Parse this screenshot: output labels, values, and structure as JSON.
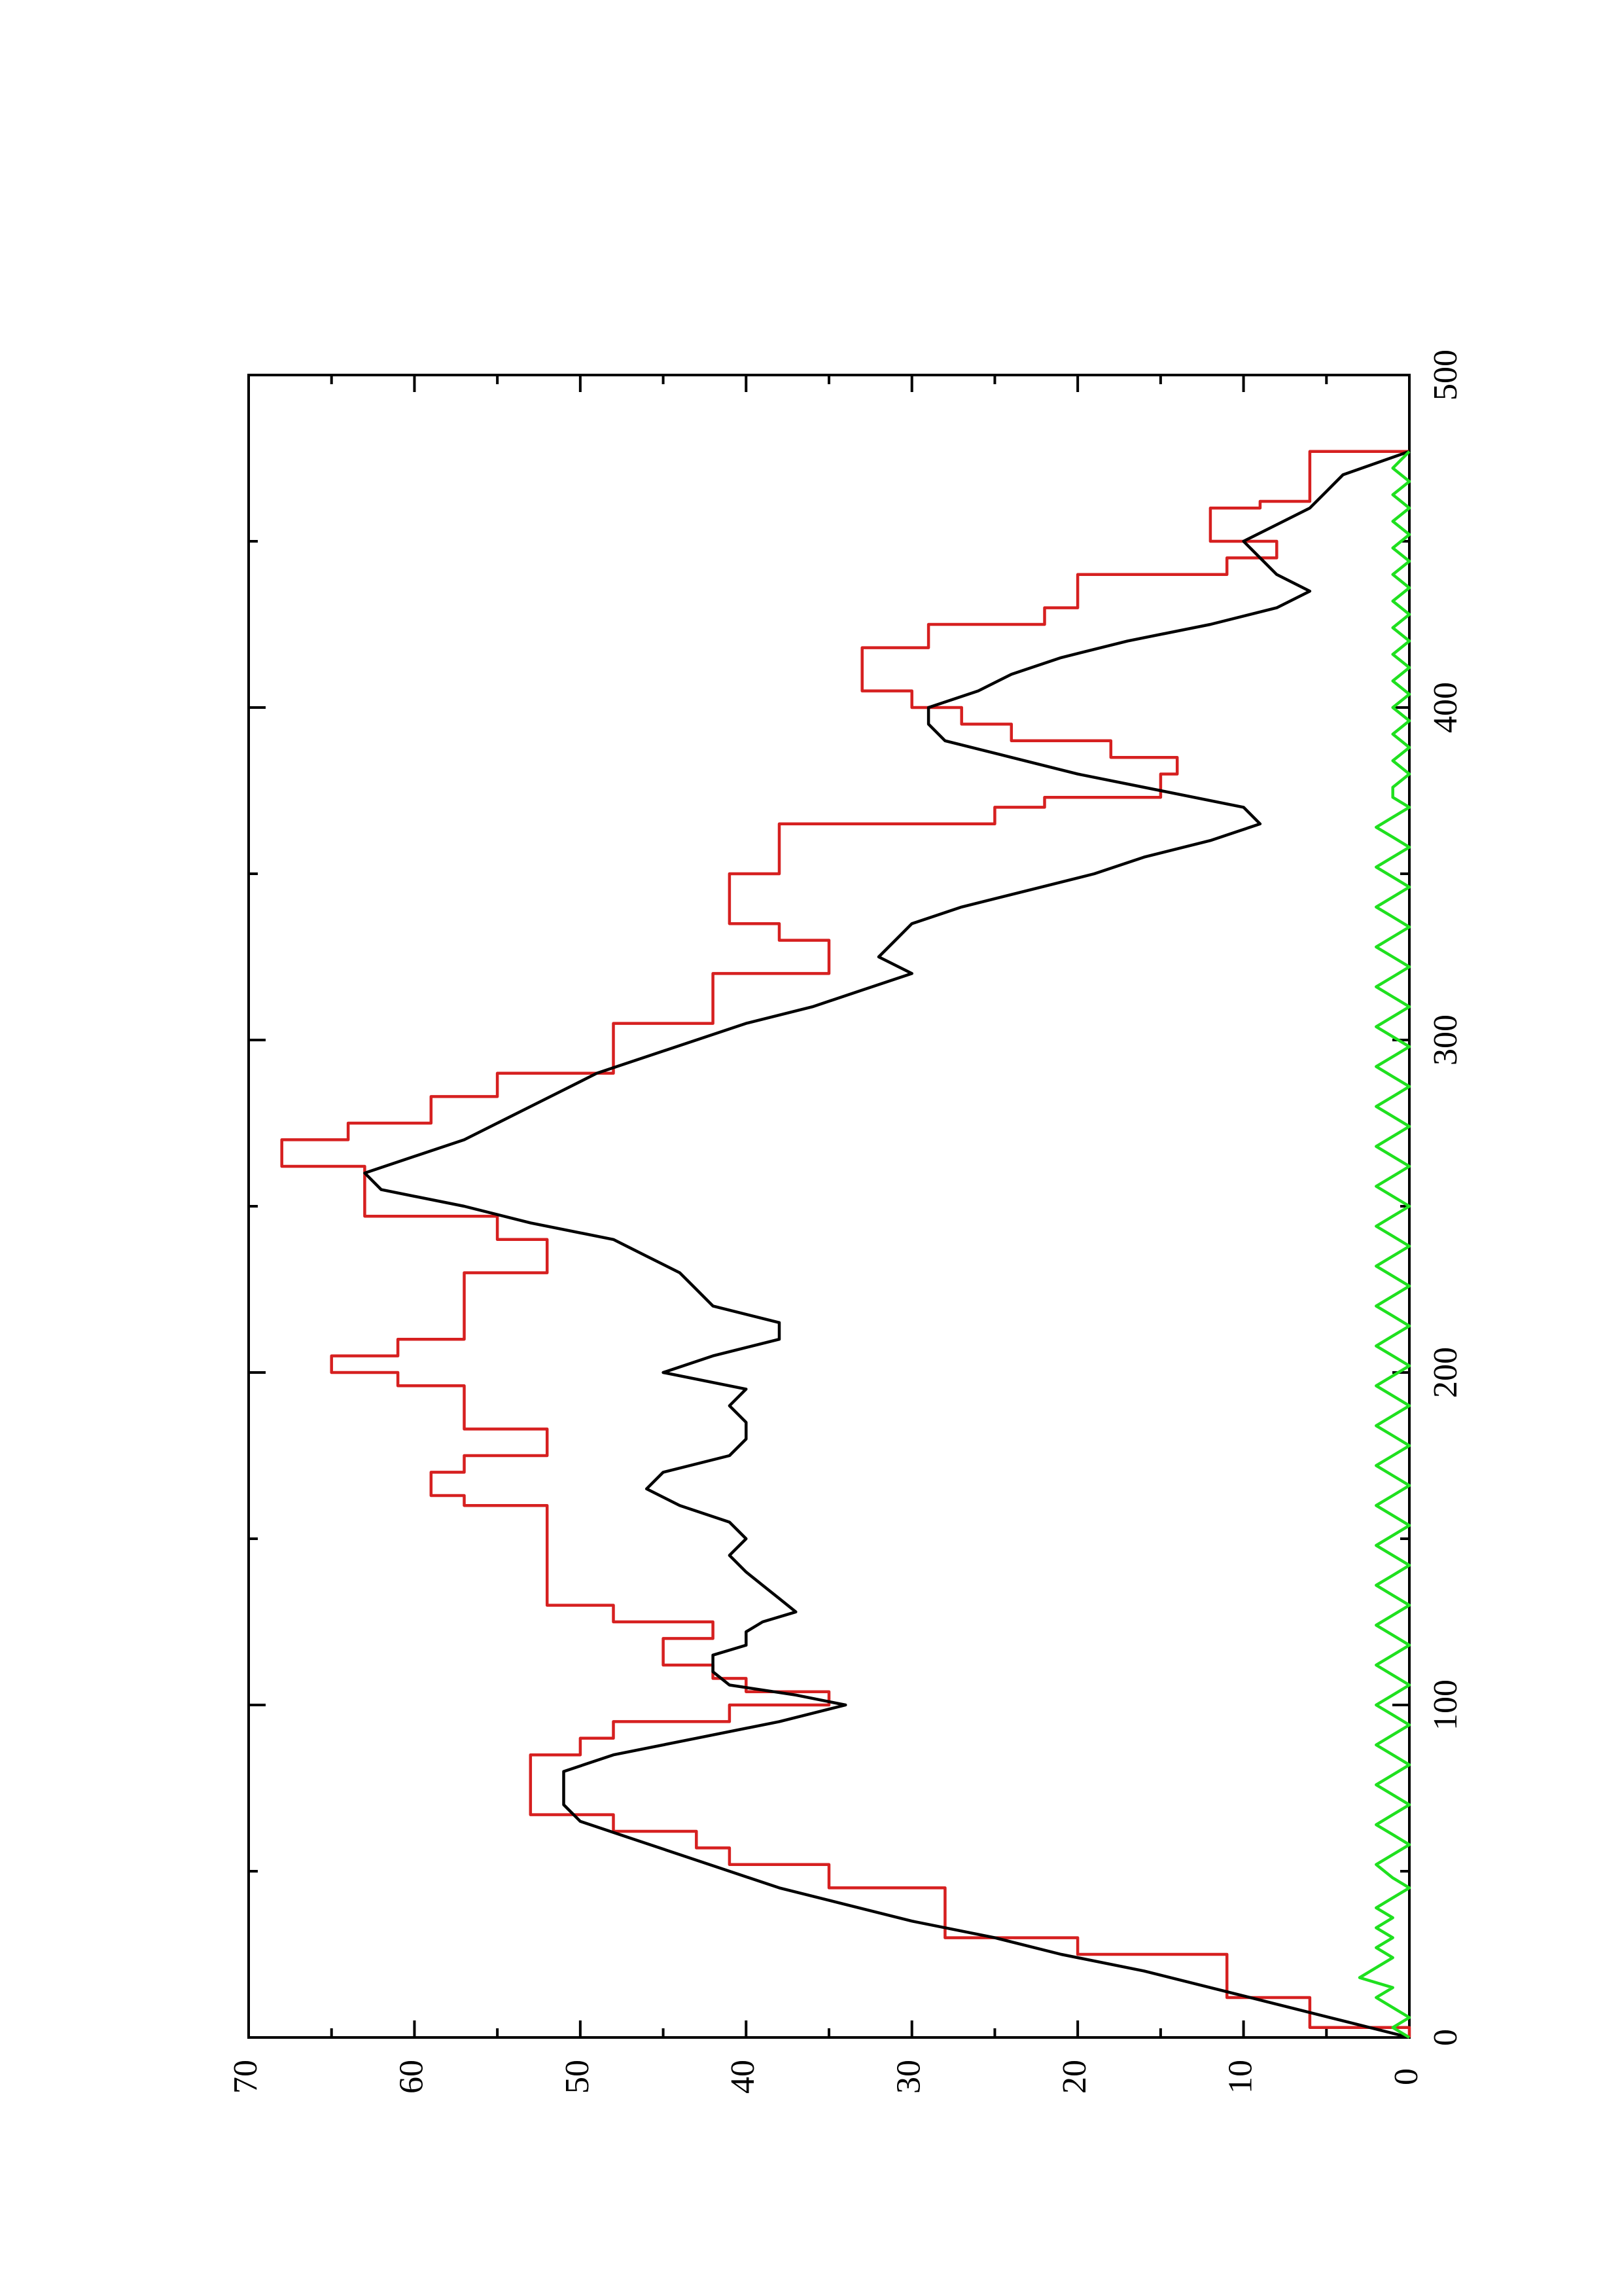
{
  "chart_data": {
    "type": "line",
    "orientation": "rotated-90-ccw",
    "title": "",
    "xlabel": "",
    "ylabel": "",
    "xlim": [
      0,
      500
    ],
    "ylim": [
      0,
      70
    ],
    "x_ticks": [
      0,
      100,
      200,
      300,
      400,
      500
    ],
    "x_minor_ticks": [
      50,
      150,
      250,
      350,
      450
    ],
    "y_ticks": [
      0,
      10,
      20,
      30,
      40,
      50,
      60,
      70
    ],
    "y_minor_ticks": [
      5,
      15,
      25,
      35,
      45,
      55,
      65
    ],
    "grid": false,
    "legend": "none",
    "series": [
      {
        "color": "#d62020",
        "step": true,
        "points": [
          [
            0,
            0
          ],
          [
            3,
            6
          ],
          [
            12,
            11
          ],
          [
            25,
            20
          ],
          [
            30,
            28
          ],
          [
            45,
            35
          ],
          [
            52,
            41
          ],
          [
            57,
            43
          ],
          [
            62,
            48
          ],
          [
            67,
            53
          ],
          [
            85,
            53
          ],
          [
            85,
            50
          ],
          [
            90,
            48
          ],
          [
            95,
            41
          ],
          [
            100,
            35
          ],
          [
            104,
            40
          ],
          [
            108,
            42
          ],
          [
            112,
            45
          ],
          [
            120,
            45
          ],
          [
            120,
            42
          ],
          [
            125,
            48
          ],
          [
            130,
            52
          ],
          [
            155,
            52
          ],
          [
            160,
            57
          ],
          [
            163,
            59
          ],
          [
            170,
            57
          ],
          [
            175,
            52
          ],
          [
            180,
            52
          ],
          [
            183,
            57
          ],
          [
            190,
            57
          ],
          [
            196,
            61
          ],
          [
            200,
            65
          ],
          [
            205,
            61
          ],
          [
            210,
            57
          ],
          [
            225,
            57
          ],
          [
            230,
            52
          ],
          [
            240,
            52
          ],
          [
            240,
            55
          ],
          [
            247,
            63
          ],
          [
            257,
            63
          ],
          [
            262,
            68
          ],
          [
            270,
            64
          ],
          [
            275,
            59
          ],
          [
            283,
            55
          ],
          [
            290,
            48
          ],
          [
            305,
            42
          ],
          [
            315,
            42
          ],
          [
            320,
            35
          ],
          [
            325,
            35
          ],
          [
            330,
            38
          ],
          [
            335,
            41
          ],
          [
            345,
            41
          ],
          [
            350,
            38
          ],
          [
            365,
            25
          ],
          [
            370,
            22
          ],
          [
            373,
            15
          ],
          [
            380,
            14
          ],
          [
            385,
            18
          ],
          [
            390,
            24
          ],
          [
            395,
            27
          ],
          [
            400,
            30
          ],
          [
            405,
            33
          ],
          [
            412,
            33
          ],
          [
            418,
            29
          ],
          [
            425,
            22
          ],
          [
            430,
            20
          ],
          [
            440,
            11
          ],
          [
            445,
            8
          ],
          [
            450,
            12
          ],
          [
            455,
            12
          ],
          [
            460,
            9
          ],
          [
            462,
            6
          ],
          [
            470,
            6
          ],
          [
            477,
            0
          ]
        ]
      },
      {
        "color": "#000000",
        "step": false,
        "points": [
          [
            0,
            0
          ],
          [
            5,
            4
          ],
          [
            10,
            8
          ],
          [
            15,
            12
          ],
          [
            20,
            16
          ],
          [
            25,
            21
          ],
          [
            30,
            25
          ],
          [
            35,
            30
          ],
          [
            40,
            34
          ],
          [
            45,
            38
          ],
          [
            50,
            41
          ],
          [
            55,
            44
          ],
          [
            60,
            47
          ],
          [
            65,
            50
          ],
          [
            70,
            51
          ],
          [
            75,
            51
          ],
          [
            80,
            51
          ],
          [
            85,
            48
          ],
          [
            90,
            43
          ],
          [
            95,
            38
          ],
          [
            100,
            34
          ],
          [
            103,
            37
          ],
          [
            106,
            41
          ],
          [
            110,
            42
          ],
          [
            115,
            42
          ],
          [
            118,
            40
          ],
          [
            122,
            40
          ],
          [
            125,
            39
          ],
          [
            128,
            37
          ],
          [
            132,
            38
          ],
          [
            136,
            39
          ],
          [
            140,
            40
          ],
          [
            145,
            41
          ],
          [
            150,
            40
          ],
          [
            155,
            41
          ],
          [
            160,
            44
          ],
          [
            165,
            46
          ],
          [
            170,
            45
          ],
          [
            175,
            41
          ],
          [
            180,
            40
          ],
          [
            185,
            40
          ],
          [
            190,
            41
          ],
          [
            195,
            40
          ],
          [
            200,
            45
          ],
          [
            205,
            42
          ],
          [
            210,
            38
          ],
          [
            215,
            38
          ],
          [
            220,
            42
          ],
          [
            225,
            43
          ],
          [
            230,
            44
          ],
          [
            235,
            46
          ],
          [
            240,
            48
          ],
          [
            245,
            53
          ],
          [
            250,
            57
          ],
          [
            255,
            62
          ],
          [
            260,
            63
          ],
          [
            265,
            60
          ],
          [
            270,
            57
          ],
          [
            275,
            55
          ],
          [
            280,
            53
          ],
          [
            285,
            51
          ],
          [
            290,
            49
          ],
          [
            295,
            46
          ],
          [
            300,
            43
          ],
          [
            305,
            40
          ],
          [
            310,
            36
          ],
          [
            315,
            33
          ],
          [
            320,
            30
          ],
          [
            325,
            32
          ],
          [
            330,
            31
          ],
          [
            335,
            30
          ],
          [
            340,
            27
          ],
          [
            345,
            23
          ],
          [
            350,
            19
          ],
          [
            355,
            16
          ],
          [
            360,
            12
          ],
          [
            365,
            9
          ],
          [
            370,
            10
          ],
          [
            375,
            15
          ],
          [
            380,
            20
          ],
          [
            385,
            24
          ],
          [
            390,
            28
          ],
          [
            395,
            29
          ],
          [
            400,
            29
          ],
          [
            405,
            26
          ],
          [
            410,
            24
          ],
          [
            415,
            21
          ],
          [
            420,
            17
          ],
          [
            425,
            12
          ],
          [
            430,
            8
          ],
          [
            435,
            6
          ],
          [
            440,
            8
          ],
          [
            445,
            9
          ],
          [
            450,
            10
          ],
          [
            455,
            8
          ],
          [
            460,
            6
          ],
          [
            465,
            5
          ],
          [
            470,
            4
          ],
          [
            477,
            0
          ]
        ]
      },
      {
        "color": "#1fe01f",
        "step": false,
        "points": [
          [
            0,
            0
          ],
          [
            3,
            1
          ],
          [
            6,
            0
          ],
          [
            9,
            1
          ],
          [
            12,
            2
          ],
          [
            15,
            1
          ],
          [
            18,
            3
          ],
          [
            21,
            2
          ],
          [
            24,
            1
          ],
          [
            27,
            2
          ],
          [
            30,
            1
          ],
          [
            33,
            2
          ],
          [
            36,
            1
          ],
          [
            39,
            2
          ],
          [
            42,
            1
          ],
          [
            45,
            0
          ],
          [
            48,
            1
          ],
          [
            52,
            2
          ],
          [
            55,
            1
          ],
          [
            58,
            0
          ],
          [
            61,
            1
          ],
          [
            64,
            2
          ],
          [
            67,
            1
          ],
          [
            70,
            0
          ],
          [
            73,
            1
          ],
          [
            76,
            2
          ],
          [
            79,
            1
          ],
          [
            82,
            0
          ],
          [
            85,
            1
          ],
          [
            88,
            2
          ],
          [
            91,
            1
          ],
          [
            94,
            0
          ],
          [
            97,
            1
          ],
          [
            100,
            2
          ],
          [
            103,
            1
          ],
          [
            106,
            0
          ],
          [
            109,
            1
          ],
          [
            112,
            2
          ],
          [
            115,
            1
          ],
          [
            118,
            0
          ],
          [
            121,
            1
          ],
          [
            124,
            2
          ],
          [
            127,
            1
          ],
          [
            130,
            0
          ],
          [
            133,
            1
          ],
          [
            136,
            2
          ],
          [
            139,
            1
          ],
          [
            142,
            0
          ],
          [
            145,
            1
          ],
          [
            148,
            2
          ],
          [
            151,
            1
          ],
          [
            154,
            0
          ],
          [
            157,
            1
          ],
          [
            160,
            2
          ],
          [
            163,
            1
          ],
          [
            166,
            0
          ],
          [
            169,
            1
          ],
          [
            172,
            2
          ],
          [
            175,
            1
          ],
          [
            178,
            0
          ],
          [
            181,
            1
          ],
          [
            184,
            2
          ],
          [
            187,
            1
          ],
          [
            190,
            0
          ],
          [
            193,
            1
          ],
          [
            196,
            2
          ],
          [
            199,
            1
          ],
          [
            202,
            0
          ],
          [
            205,
            1
          ],
          [
            208,
            2
          ],
          [
            211,
            1
          ],
          [
            214,
            0
          ],
          [
            217,
            1
          ],
          [
            220,
            2
          ],
          [
            223,
            1
          ],
          [
            226,
            0
          ],
          [
            229,
            1
          ],
          [
            232,
            2
          ],
          [
            235,
            1
          ],
          [
            238,
            0
          ],
          [
            241,
            1
          ],
          [
            244,
            2
          ],
          [
            247,
            1
          ],
          [
            250,
            0
          ],
          [
            253,
            1
          ],
          [
            256,
            2
          ],
          [
            259,
            1
          ],
          [
            262,
            0
          ],
          [
            265,
            1
          ],
          [
            268,
            2
          ],
          [
            271,
            1
          ],
          [
            274,
            0
          ],
          [
            277,
            1
          ],
          [
            280,
            2
          ],
          [
            283,
            1
          ],
          [
            286,
            0
          ],
          [
            289,
            1
          ],
          [
            292,
            2
          ],
          [
            295,
            1
          ],
          [
            298,
            0
          ],
          [
            301,
            1
          ],
          [
            304,
            2
          ],
          [
            307,
            1
          ],
          [
            310,
            0
          ],
          [
            313,
            1
          ],
          [
            316,
            2
          ],
          [
            319,
            1
          ],
          [
            322,
            0
          ],
          [
            325,
            1
          ],
          [
            328,
            2
          ],
          [
            331,
            1
          ],
          [
            334,
            0
          ],
          [
            337,
            1
          ],
          [
            340,
            2
          ],
          [
            343,
            1
          ],
          [
            346,
            0
          ],
          [
            349,
            1
          ],
          [
            352,
            2
          ],
          [
            355,
            1
          ],
          [
            358,
            0
          ],
          [
            361,
            1
          ],
          [
            364,
            2
          ],
          [
            367,
            1
          ],
          [
            370,
            0
          ],
          [
            373,
            1
          ],
          [
            376,
            1
          ],
          [
            380,
            0
          ],
          [
            384,
            1
          ],
          [
            388,
            0
          ],
          [
            392,
            1
          ],
          [
            396,
            0
          ],
          [
            400,
            1
          ],
          [
            404,
            0
          ],
          [
            408,
            1
          ],
          [
            412,
            0
          ],
          [
            416,
            1
          ],
          [
            420,
            0
          ],
          [
            424,
            1
          ],
          [
            428,
            0
          ],
          [
            432,
            1
          ],
          [
            436,
            0
          ],
          [
            440,
            1
          ],
          [
            444,
            0
          ],
          [
            448,
            1
          ],
          [
            452,
            0
          ],
          [
            456,
            1
          ],
          [
            460,
            0
          ],
          [
            464,
            1
          ],
          [
            468,
            0
          ],
          [
            472,
            1
          ],
          [
            477,
            0
          ]
        ]
      }
    ]
  }
}
